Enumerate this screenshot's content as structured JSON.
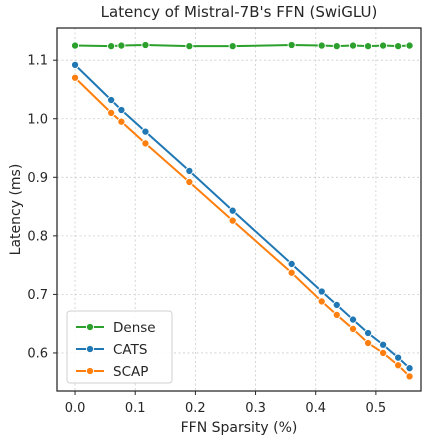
{
  "chart_data": {
    "type": "line",
    "title": "Latency of Mistral-7B's FFN (SwiGLU)",
    "xlabel": "FFN Sparsity (%)",
    "ylabel": "Latency (ms)",
    "xlim": [
      -0.03,
      0.575
    ],
    "ylim": [
      0.535,
      1.155
    ],
    "xticks": [
      0.0,
      0.1,
      0.2,
      0.3,
      0.4,
      0.5
    ],
    "xtick_labels": [
      "0.0",
      "0.1",
      "0.2",
      "0.3",
      "0.4",
      "0.5"
    ],
    "yticks": [
      0.6,
      0.7,
      0.8,
      0.9,
      1.0,
      1.1
    ],
    "ytick_labels": [
      "0.6",
      "0.7",
      "0.8",
      "0.9",
      "1.0",
      "1.1"
    ],
    "grid": true,
    "legend_position": "lower-left",
    "series": [
      {
        "name": "Dense",
        "color": "#2ca02c",
        "x": [
          0.0,
          0.06,
          0.077,
          0.117,
          0.19,
          0.262,
          0.36,
          0.41,
          0.435,
          0.462,
          0.487,
          0.512,
          0.537,
          0.556
        ],
        "y": [
          1.125,
          1.124,
          1.125,
          1.126,
          1.124,
          1.124,
          1.126,
          1.125,
          1.124,
          1.125,
          1.124,
          1.125,
          1.124,
          1.125
        ]
      },
      {
        "name": "CATS",
        "color": "#1f77b4",
        "x": [
          0.0,
          0.06,
          0.077,
          0.117,
          0.19,
          0.262,
          0.36,
          0.41,
          0.435,
          0.462,
          0.487,
          0.512,
          0.537,
          0.556
        ],
        "y": [
          1.092,
          1.032,
          1.015,
          0.978,
          0.911,
          0.843,
          0.752,
          0.705,
          0.682,
          0.657,
          0.634,
          0.614,
          0.592,
          0.574
        ]
      },
      {
        "name": "SCAP",
        "color": "#ff7f0e",
        "x": [
          0.0,
          0.06,
          0.077,
          0.117,
          0.19,
          0.262,
          0.36,
          0.41,
          0.435,
          0.462,
          0.487,
          0.512,
          0.537,
          0.556
        ],
        "y": [
          1.07,
          1.01,
          0.995,
          0.958,
          0.892,
          0.826,
          0.737,
          0.688,
          0.665,
          0.641,
          0.617,
          0.6,
          0.579,
          0.56
        ]
      }
    ]
  }
}
